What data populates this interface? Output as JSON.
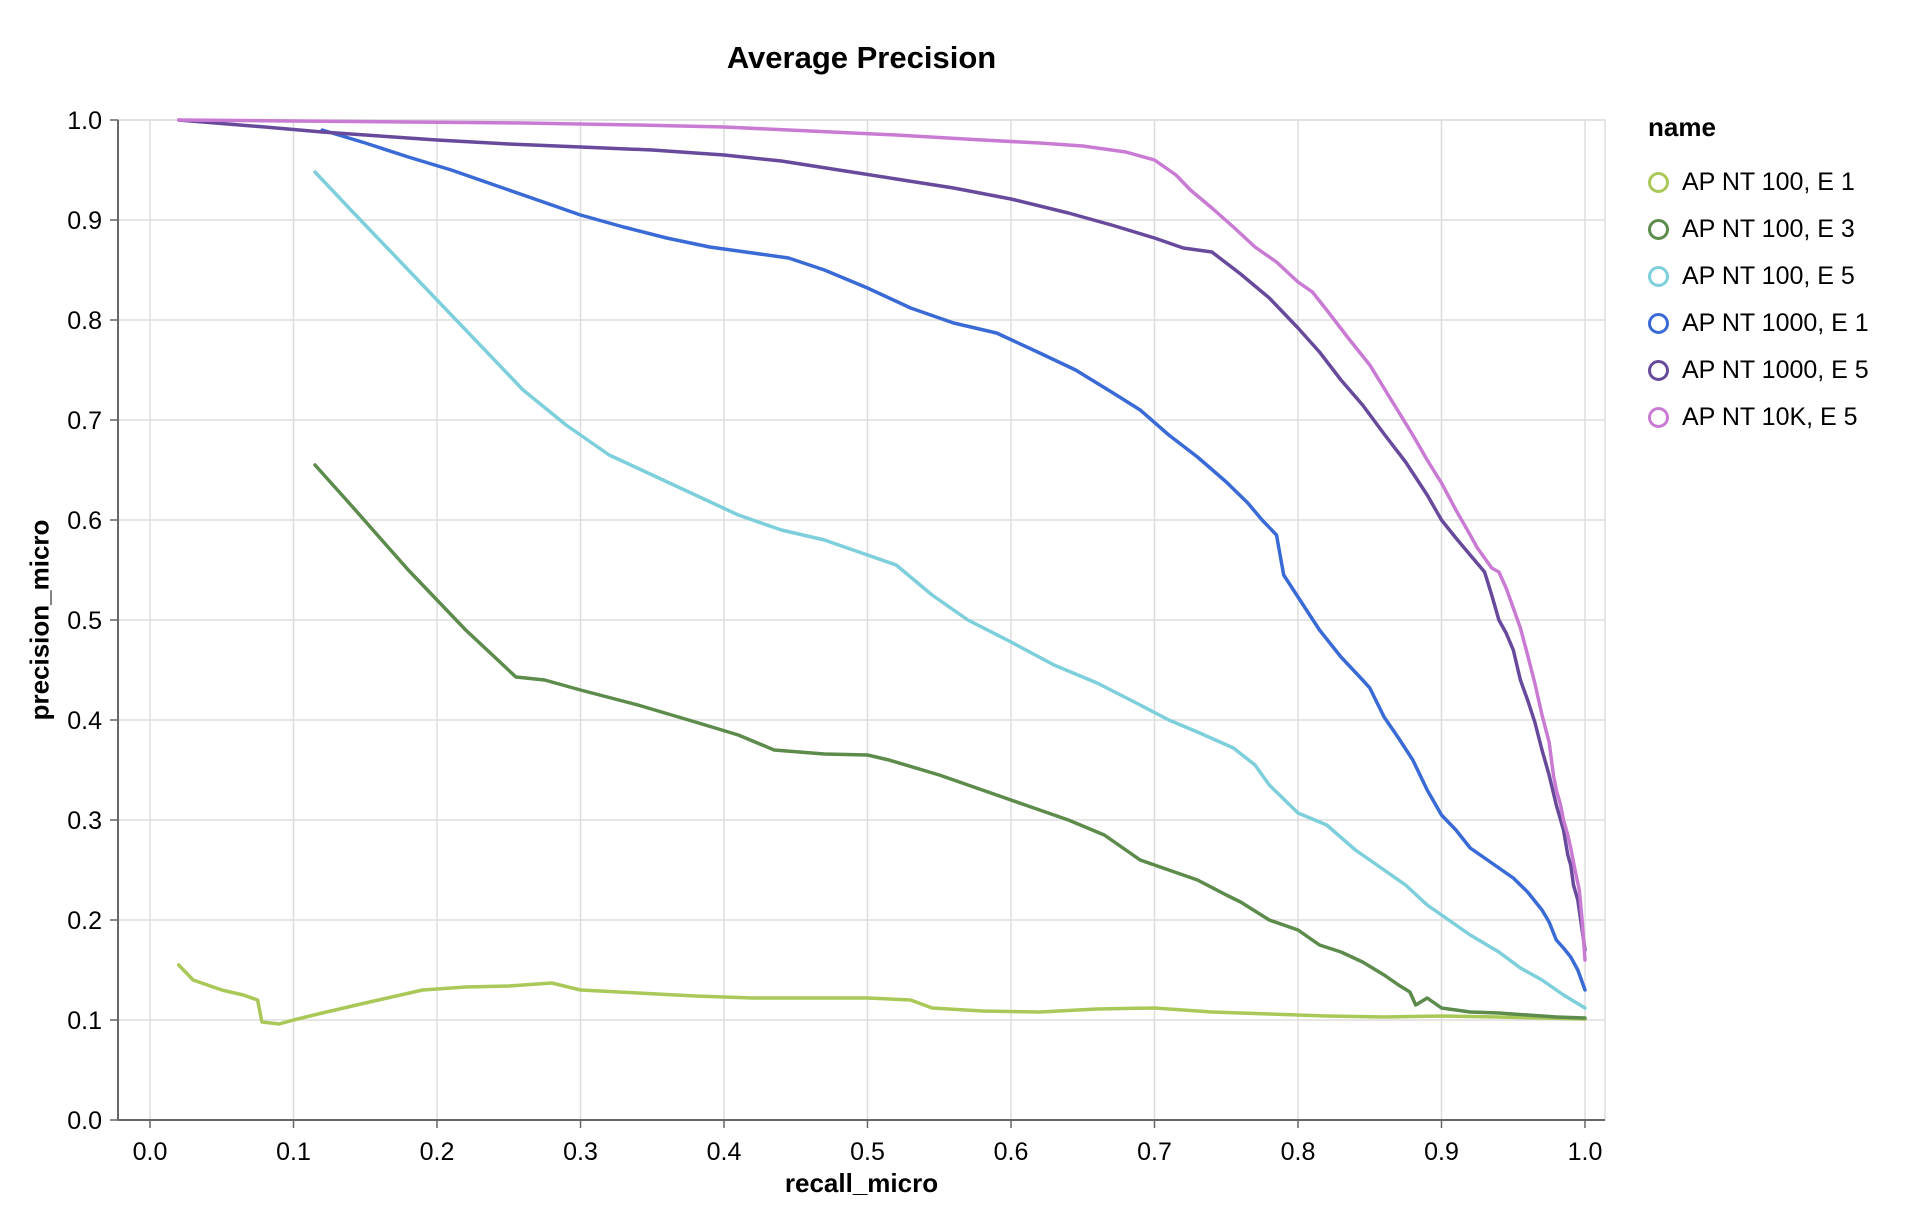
{
  "chart_data": {
    "type": "line",
    "title": "Average Precision",
    "xlabel": "recall_micro",
    "ylabel": "precision_micro",
    "legend_title": "name",
    "legend_position": "right",
    "grid": true,
    "xlim": [
      0.0,
      1.0
    ],
    "ylim": [
      0.0,
      1.0
    ],
    "x_ticks": [
      0.0,
      0.1,
      0.2,
      0.3,
      0.4,
      0.5,
      0.6,
      0.7,
      0.8,
      0.9,
      1.0
    ],
    "y_ticks": [
      0.0,
      0.1,
      0.2,
      0.3,
      0.4,
      0.5,
      0.6,
      0.7,
      0.8,
      0.9,
      1.0
    ],
    "colors": {
      "background": "#ffffff",
      "grid": "#dddddd",
      "axis": "#666666",
      "text": "#000000"
    },
    "series": [
      {
        "name": "AP NT 100, E 1",
        "color": "#a9c858",
        "points": [
          [
            0.02,
            0.155
          ],
          [
            0.03,
            0.14
          ],
          [
            0.05,
            0.13
          ],
          [
            0.065,
            0.125
          ],
          [
            0.075,
            0.12
          ],
          [
            0.078,
            0.098
          ],
          [
            0.09,
            0.096
          ],
          [
            0.1,
            0.1
          ],
          [
            0.12,
            0.107
          ],
          [
            0.15,
            0.117
          ],
          [
            0.19,
            0.13
          ],
          [
            0.22,
            0.133
          ],
          [
            0.25,
            0.134
          ],
          [
            0.28,
            0.137
          ],
          [
            0.3,
            0.13
          ],
          [
            0.34,
            0.127
          ],
          [
            0.38,
            0.124
          ],
          [
            0.42,
            0.122
          ],
          [
            0.46,
            0.122
          ],
          [
            0.5,
            0.122
          ],
          [
            0.53,
            0.12
          ],
          [
            0.545,
            0.112
          ],
          [
            0.58,
            0.109
          ],
          [
            0.62,
            0.108
          ],
          [
            0.66,
            0.111
          ],
          [
            0.7,
            0.112
          ],
          [
            0.74,
            0.108
          ],
          [
            0.78,
            0.106
          ],
          [
            0.82,
            0.104
          ],
          [
            0.86,
            0.103
          ],
          [
            0.9,
            0.104
          ],
          [
            0.94,
            0.103
          ],
          [
            0.97,
            0.102
          ],
          [
            1.0,
            0.101
          ]
        ]
      },
      {
        "name": "AP NT 100, E 3",
        "color": "#5c8b4c",
        "points": [
          [
            0.115,
            0.655
          ],
          [
            0.14,
            0.615
          ],
          [
            0.18,
            0.55
          ],
          [
            0.22,
            0.49
          ],
          [
            0.255,
            0.443
          ],
          [
            0.275,
            0.44
          ],
          [
            0.3,
            0.43
          ],
          [
            0.34,
            0.415
          ],
          [
            0.38,
            0.398
          ],
          [
            0.41,
            0.385
          ],
          [
            0.435,
            0.37
          ],
          [
            0.47,
            0.366
          ],
          [
            0.5,
            0.365
          ],
          [
            0.515,
            0.36
          ],
          [
            0.55,
            0.345
          ],
          [
            0.58,
            0.33
          ],
          [
            0.61,
            0.315
          ],
          [
            0.64,
            0.3
          ],
          [
            0.665,
            0.285
          ],
          [
            0.69,
            0.26
          ],
          [
            0.71,
            0.25
          ],
          [
            0.73,
            0.24
          ],
          [
            0.75,
            0.225
          ],
          [
            0.76,
            0.218
          ],
          [
            0.78,
            0.2
          ],
          [
            0.8,
            0.19
          ],
          [
            0.815,
            0.175
          ],
          [
            0.83,
            0.168
          ],
          [
            0.845,
            0.158
          ],
          [
            0.86,
            0.145
          ],
          [
            0.87,
            0.135
          ],
          [
            0.878,
            0.128
          ],
          [
            0.882,
            0.115
          ],
          [
            0.89,
            0.122
          ],
          [
            0.9,
            0.112
          ],
          [
            0.92,
            0.108
          ],
          [
            0.94,
            0.107
          ],
          [
            0.96,
            0.105
          ],
          [
            0.98,
            0.103
          ],
          [
            1.0,
            0.102
          ]
        ]
      },
      {
        "name": "AP NT 100, E 5",
        "color": "#7ccfdb",
        "points": [
          [
            0.115,
            0.948
          ],
          [
            0.14,
            0.91
          ],
          [
            0.17,
            0.865
          ],
          [
            0.2,
            0.82
          ],
          [
            0.23,
            0.775
          ],
          [
            0.26,
            0.73
          ],
          [
            0.29,
            0.695
          ],
          [
            0.32,
            0.665
          ],
          [
            0.35,
            0.645
          ],
          [
            0.38,
            0.625
          ],
          [
            0.41,
            0.605
          ],
          [
            0.44,
            0.59
          ],
          [
            0.47,
            0.58
          ],
          [
            0.5,
            0.565
          ],
          [
            0.52,
            0.555
          ],
          [
            0.545,
            0.525
          ],
          [
            0.57,
            0.5
          ],
          [
            0.6,
            0.478
          ],
          [
            0.63,
            0.455
          ],
          [
            0.66,
            0.437
          ],
          [
            0.69,
            0.415
          ],
          [
            0.71,
            0.4
          ],
          [
            0.73,
            0.388
          ],
          [
            0.755,
            0.372
          ],
          [
            0.77,
            0.355
          ],
          [
            0.78,
            0.335
          ],
          [
            0.8,
            0.307
          ],
          [
            0.82,
            0.295
          ],
          [
            0.84,
            0.27
          ],
          [
            0.86,
            0.25
          ],
          [
            0.875,
            0.235
          ],
          [
            0.89,
            0.215
          ],
          [
            0.905,
            0.2
          ],
          [
            0.92,
            0.185
          ],
          [
            0.94,
            0.168
          ],
          [
            0.955,
            0.152
          ],
          [
            0.97,
            0.14
          ],
          [
            0.985,
            0.125
          ],
          [
            1.0,
            0.112
          ]
        ]
      },
      {
        "name": "AP NT 1000, E 1",
        "color": "#3a6ad6",
        "points": [
          [
            0.12,
            0.99
          ],
          [
            0.15,
            0.977
          ],
          [
            0.18,
            0.963
          ],
          [
            0.21,
            0.95
          ],
          [
            0.24,
            0.935
          ],
          [
            0.27,
            0.92
          ],
          [
            0.3,
            0.905
          ],
          [
            0.33,
            0.893
          ],
          [
            0.36,
            0.882
          ],
          [
            0.39,
            0.873
          ],
          [
            0.42,
            0.867
          ],
          [
            0.445,
            0.862
          ],
          [
            0.47,
            0.85
          ],
          [
            0.5,
            0.832
          ],
          [
            0.53,
            0.812
          ],
          [
            0.56,
            0.797
          ],
          [
            0.59,
            0.787
          ],
          [
            0.62,
            0.767
          ],
          [
            0.645,
            0.75
          ],
          [
            0.67,
            0.728
          ],
          [
            0.69,
            0.71
          ],
          [
            0.71,
            0.685
          ],
          [
            0.73,
            0.663
          ],
          [
            0.75,
            0.638
          ],
          [
            0.765,
            0.617
          ],
          [
            0.775,
            0.6
          ],
          [
            0.785,
            0.585
          ],
          [
            0.79,
            0.545
          ],
          [
            0.8,
            0.523
          ],
          [
            0.815,
            0.49
          ],
          [
            0.83,
            0.463
          ],
          [
            0.845,
            0.44
          ],
          [
            0.85,
            0.432
          ],
          [
            0.86,
            0.403
          ],
          [
            0.87,
            0.382
          ],
          [
            0.88,
            0.36
          ],
          [
            0.89,
            0.33
          ],
          [
            0.9,
            0.305
          ],
          [
            0.91,
            0.29
          ],
          [
            0.92,
            0.272
          ],
          [
            0.93,
            0.262
          ],
          [
            0.94,
            0.252
          ],
          [
            0.95,
            0.242
          ],
          [
            0.96,
            0.228
          ],
          [
            0.97,
            0.21
          ],
          [
            0.975,
            0.198
          ],
          [
            0.98,
            0.18
          ],
          [
            0.985,
            0.172
          ],
          [
            0.99,
            0.163
          ],
          [
            0.995,
            0.15
          ],
          [
            1.0,
            0.13
          ]
        ]
      },
      {
        "name": "AP NT 1000, E 5",
        "color": "#684a9d",
        "points": [
          [
            0.02,
            1.0
          ],
          [
            0.08,
            0.993
          ],
          [
            0.12,
            0.988
          ],
          [
            0.16,
            0.984
          ],
          [
            0.2,
            0.98
          ],
          [
            0.25,
            0.976
          ],
          [
            0.3,
            0.973
          ],
          [
            0.35,
            0.97
          ],
          [
            0.4,
            0.965
          ],
          [
            0.44,
            0.959
          ],
          [
            0.48,
            0.95
          ],
          [
            0.52,
            0.941
          ],
          [
            0.56,
            0.932
          ],
          [
            0.6,
            0.921
          ],
          [
            0.64,
            0.907
          ],
          [
            0.67,
            0.895
          ],
          [
            0.7,
            0.882
          ],
          [
            0.72,
            0.872
          ],
          [
            0.74,
            0.868
          ],
          [
            0.76,
            0.846
          ],
          [
            0.78,
            0.822
          ],
          [
            0.8,
            0.792
          ],
          [
            0.815,
            0.768
          ],
          [
            0.83,
            0.74
          ],
          [
            0.845,
            0.715
          ],
          [
            0.86,
            0.686
          ],
          [
            0.875,
            0.658
          ],
          [
            0.89,
            0.625
          ],
          [
            0.9,
            0.6
          ],
          [
            0.91,
            0.582
          ],
          [
            0.92,
            0.565
          ],
          [
            0.93,
            0.548
          ],
          [
            0.935,
            0.525
          ],
          [
            0.94,
            0.5
          ],
          [
            0.945,
            0.487
          ],
          [
            0.95,
            0.47
          ],
          [
            0.955,
            0.44
          ],
          [
            0.96,
            0.42
          ],
          [
            0.965,
            0.398
          ],
          [
            0.97,
            0.37
          ],
          [
            0.975,
            0.345
          ],
          [
            0.98,
            0.315
          ],
          [
            0.985,
            0.29
          ],
          [
            0.988,
            0.265
          ],
          [
            0.99,
            0.255
          ],
          [
            0.992,
            0.235
          ],
          [
            0.995,
            0.22
          ],
          [
            0.997,
            0.2
          ],
          [
            1.0,
            0.17
          ]
        ]
      },
      {
        "name": "AP NT 10K, E 5",
        "color": "#c97bd3",
        "points": [
          [
            0.02,
            1.0
          ],
          [
            0.1,
            0.999
          ],
          [
            0.18,
            0.998
          ],
          [
            0.26,
            0.997
          ],
          [
            0.34,
            0.995
          ],
          [
            0.4,
            0.993
          ],
          [
            0.46,
            0.989
          ],
          [
            0.52,
            0.985
          ],
          [
            0.58,
            0.98
          ],
          [
            0.62,
            0.977
          ],
          [
            0.65,
            0.974
          ],
          [
            0.68,
            0.968
          ],
          [
            0.7,
            0.96
          ],
          [
            0.715,
            0.945
          ],
          [
            0.725,
            0.93
          ],
          [
            0.74,
            0.912
          ],
          [
            0.755,
            0.893
          ],
          [
            0.77,
            0.873
          ],
          [
            0.785,
            0.858
          ],
          [
            0.8,
            0.838
          ],
          [
            0.81,
            0.828
          ],
          [
            0.82,
            0.81
          ],
          [
            0.835,
            0.782
          ],
          [
            0.85,
            0.755
          ],
          [
            0.865,
            0.72
          ],
          [
            0.88,
            0.685
          ],
          [
            0.89,
            0.66
          ],
          [
            0.9,
            0.637
          ],
          [
            0.91,
            0.61
          ],
          [
            0.92,
            0.585
          ],
          [
            0.925,
            0.572
          ],
          [
            0.93,
            0.562
          ],
          [
            0.935,
            0.552
          ],
          [
            0.94,
            0.548
          ],
          [
            0.945,
            0.532
          ],
          [
            0.95,
            0.512
          ],
          [
            0.955,
            0.492
          ],
          [
            0.96,
            0.465
          ],
          [
            0.965,
            0.437
          ],
          [
            0.97,
            0.405
          ],
          [
            0.975,
            0.378
          ],
          [
            0.978,
            0.345
          ],
          [
            0.98,
            0.33
          ],
          [
            0.983,
            0.315
          ],
          [
            0.985,
            0.3
          ],
          [
            0.988,
            0.285
          ],
          [
            0.99,
            0.272
          ],
          [
            0.993,
            0.25
          ],
          [
            0.996,
            0.23
          ],
          [
            0.998,
            0.2
          ],
          [
            1.0,
            0.16
          ]
        ]
      }
    ]
  }
}
